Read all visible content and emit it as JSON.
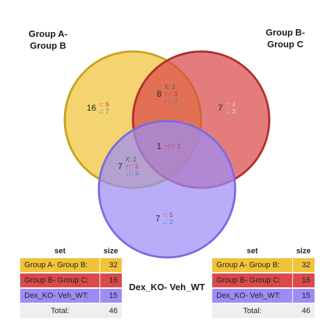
{
  "chart_data": {
    "type": "venn",
    "sets": [
      {
        "name": "Group A-\nGroup B",
        "size": 32,
        "color": "#F0C33A"
      },
      {
        "name": "Group B-\nGroup C",
        "size": 16,
        "color": "#D94A4A"
      },
      {
        "name": "Dex_KO- Veh_WT",
        "size": 15,
        "color": "#9C8DF5"
      }
    ],
    "regions": [
      {
        "id": "A",
        "count": 16,
        "lines": [
          {
            "text": "↑: 9",
            "color": "#c0392b"
          },
          {
            "text": "↓: 7",
            "color": "#2f7fd1"
          }
        ]
      },
      {
        "id": "B",
        "count": 7,
        "lines": [
          {
            "text": "↑: 4",
            "color": "#f3c4c4"
          },
          {
            "text": "↓: 3",
            "color": "#bfe0f0"
          }
        ]
      },
      {
        "id": "C",
        "count": 7,
        "lines": [
          {
            "text": "↑: 5",
            "color": "#c0392b"
          },
          {
            "text": "↓: 2",
            "color": "#2f7fd1"
          }
        ]
      },
      {
        "id": "AB",
        "count": 8,
        "lines": [
          {
            "text": "X: 2",
            "color": "#555555"
          },
          {
            "text": "↑↑: 3",
            "color": "#c0392b"
          },
          {
            "text": "↓↓: 3",
            "color": "#2f7fd1"
          }
        ]
      },
      {
        "id": "AC",
        "count": 7,
        "lines": [
          {
            "text": "X: 2",
            "color": "#555555"
          },
          {
            "text": "↑↑: 2",
            "color": "#c0392b"
          },
          {
            "text": "↓↓: 3",
            "color": "#2f7fd1"
          }
        ]
      },
      {
        "id": "ABC",
        "count": 1,
        "lines": [
          {
            "text": "↑↑↑: 1",
            "color": "#c0392b"
          }
        ]
      }
    ],
    "legend_tables": [
      {
        "headers": [
          "set",
          "size"
        ],
        "rows": [
          {
            "label": "Group A- Group B:",
            "size": "32",
            "color": "#F0C33A"
          },
          {
            "label": "Group B- Group C:",
            "size": "16",
            "color": "#D94A4A"
          },
          {
            "label": "Dex_KO- Veh_WT:",
            "size": "15",
            "color": "#9C8DF5"
          }
        ],
        "total_label": "Total:",
        "total": "46"
      },
      {
        "headers": [
          "set",
          "size"
        ],
        "rows": [
          {
            "label": "Group A- Group B:",
            "size": "32",
            "color": "#F0C33A"
          },
          {
            "label": "Group B- Group C:",
            "size": "16",
            "color": "#D94A4A"
          },
          {
            "label": "Dex_KO- Veh_WT:",
            "size": "15",
            "color": "#9C8DF5"
          }
        ],
        "total_label": "Total:",
        "total": "46"
      }
    ]
  }
}
